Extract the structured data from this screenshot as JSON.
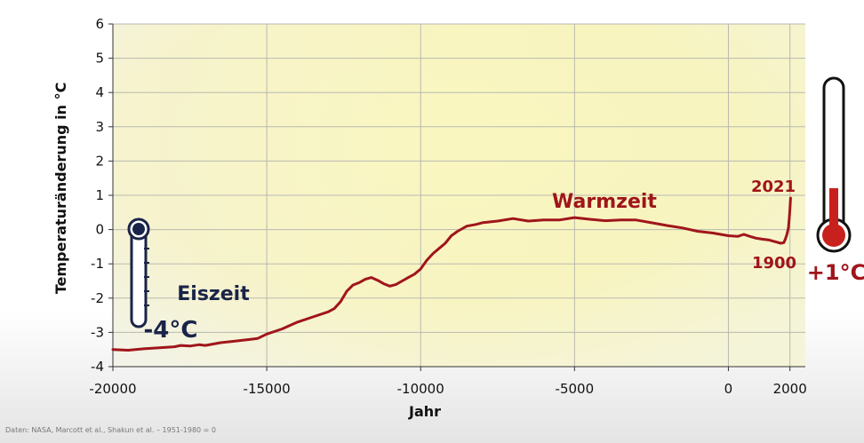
{
  "chart_data": {
    "type": "line",
    "xlabel": "Jahr",
    "ylabel": "Temperaturänderung in °C",
    "xlim": [
      -20000,
      2500
    ],
    "ylim": [
      -4,
      6
    ],
    "x_ticks": [
      "-20000",
      "-15000",
      "-10000",
      "-5000",
      "0",
      "2000"
    ],
    "y_ticks": [
      "-4",
      "-3",
      "-2",
      "-1",
      "0",
      "1",
      "2",
      "3",
      "4",
      "5",
      "6"
    ],
    "grid": true,
    "series": [
      {
        "color": "#a0151b",
        "x": [
          -20000,
          -19500,
          -19000,
          -18500,
          -18000,
          -17800,
          -17500,
          -17200,
          -17000,
          -16500,
          -16000,
          -15500,
          -15300,
          -15000,
          -14500,
          -14000,
          -13500,
          -13000,
          -12800,
          -12600,
          -12400,
          -12200,
          -12000,
          -11800,
          -11600,
          -11400,
          -11200,
          -11000,
          -10800,
          -10600,
          -10400,
          -10200,
          -10000,
          -9800,
          -9600,
          -9400,
          -9200,
          -9000,
          -8800,
          -8500,
          -8200,
          -8000,
          -7500,
          -7000,
          -6500,
          -6000,
          -5500,
          -5000,
          -4500,
          -4000,
          -3500,
          -3000,
          -2500,
          -2000,
          -1500,
          -1000,
          -500,
          0,
          300,
          500,
          700,
          900,
          1100,
          1300,
          1500,
          1700,
          1800,
          1850,
          1900,
          1950,
          1980,
          2000,
          2010,
          2021
        ],
        "y": [
          -3.5,
          -3.52,
          -3.48,
          -3.45,
          -3.42,
          -3.38,
          -3.4,
          -3.36,
          -3.38,
          -3.3,
          -3.25,
          -3.2,
          -3.18,
          -3.05,
          -2.9,
          -2.7,
          -2.55,
          -2.4,
          -2.3,
          -2.1,
          -1.8,
          -1.62,
          -1.55,
          -1.45,
          -1.4,
          -1.48,
          -1.58,
          -1.65,
          -1.6,
          -1.5,
          -1.4,
          -1.3,
          -1.15,
          -0.9,
          -0.7,
          -0.55,
          -0.4,
          -0.18,
          -0.05,
          0.1,
          0.15,
          0.2,
          0.25,
          0.32,
          0.25,
          0.28,
          0.28,
          0.35,
          0.3,
          0.26,
          0.28,
          0.28,
          0.2,
          0.12,
          0.05,
          -0.05,
          -0.1,
          -0.18,
          -0.2,
          -0.14,
          -0.2,
          -0.25,
          -0.28,
          -0.3,
          -0.35,
          -0.4,
          -0.38,
          -0.28,
          -0.15,
          0.05,
          0.35,
          0.6,
          0.75,
          0.92
        ]
      }
    ],
    "annotations": {
      "warmzeit": "Warmzeit",
      "eiszeit": "Eiszeit",
      "year_2021": "2021",
      "year_1900": "1900",
      "cold_temp": "-4°C",
      "warm_temp": "+1°C"
    }
  },
  "footer": {
    "source": "Daten: NASA, Marcott et al., Shakun et al. – 1951-1980 = 0"
  },
  "colors": {
    "line": "#a0151b",
    "cold": "#1a2448",
    "warm": "#c8201c",
    "plot_bg_light": "#fbfbf3",
    "plot_bg_yellow": "#faf6b0"
  },
  "icons": [
    "cold-thermometer-icon",
    "warm-thermometer-icon"
  ]
}
